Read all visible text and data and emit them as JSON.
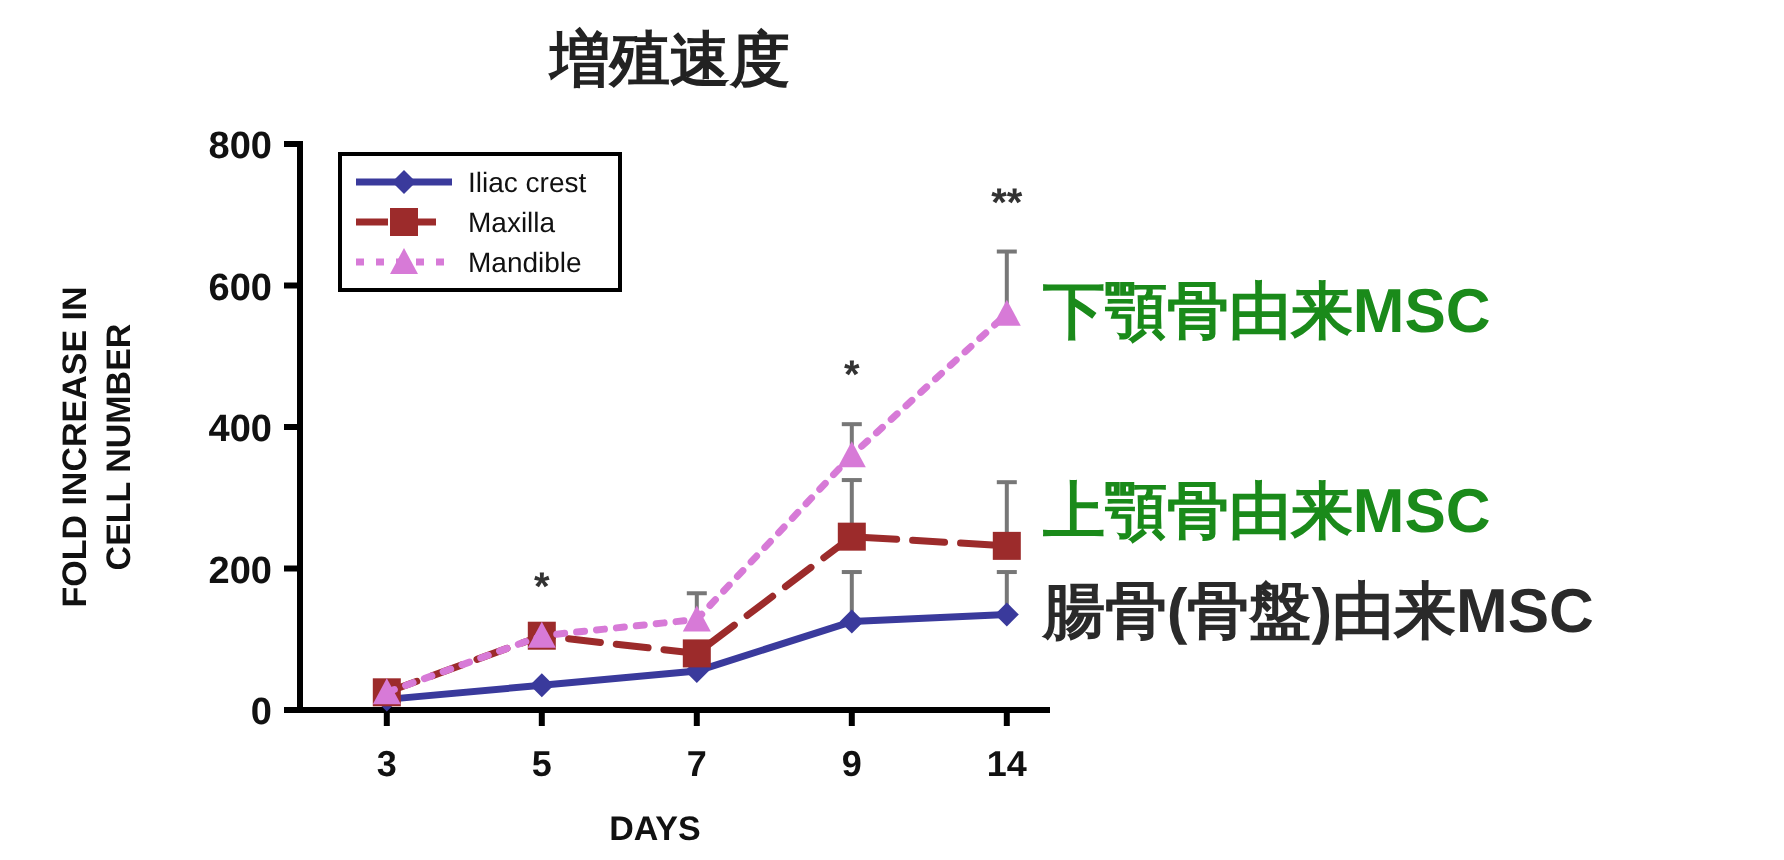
{
  "chart_data": {
    "type": "line",
    "title": "増殖速度",
    "xlabel": "DAYS",
    "ylabel": "FOLD INCREASE IN\nCELL NUMBER",
    "categories": [
      "3",
      "5",
      "7",
      "9",
      "14"
    ],
    "series": [
      {
        "name": "Iliac crest",
        "color": "#3a3a9c",
        "marker": "diamond",
        "line_style": "solid",
        "values": [
          15,
          35,
          55,
          125,
          135
        ],
        "errors": [
          null,
          null,
          null,
          [
            125,
            195
          ],
          [
            135,
            195
          ]
        ]
      },
      {
        "name": "Maxilla",
        "color": "#9c2b2b",
        "marker": "square",
        "line_style": "dashed",
        "values": [
          25,
          105,
          80,
          245,
          232
        ],
        "errors": [
          null,
          null,
          null,
          [
            245,
            325
          ],
          [
            232,
            322
          ]
        ]
      },
      {
        "name": "Mandible",
        "color": "#d77ad7",
        "marker": "triangle",
        "line_style": "dotted",
        "values": [
          25,
          105,
          128,
          360,
          560
        ],
        "errors": [
          null,
          null,
          [
            128,
            165
          ],
          [
            360,
            404
          ],
          [
            560,
            648
          ]
        ]
      }
    ],
    "ylim": [
      0,
      800
    ],
    "yticks": [
      0,
      200,
      400,
      600,
      800
    ],
    "legend": "top left",
    "annotations": [
      {
        "text": "*",
        "x": "5",
        "y": 105
      },
      {
        "text": "*",
        "x": "9",
        "y": 404
      },
      {
        "text": "**",
        "x": "14",
        "y": 648
      },
      {
        "text": "下顎骨由来MSC",
        "x": "14",
        "y": 565
      },
      {
        "text": "上顎骨由来MSC",
        "x": "14",
        "y": 282
      },
      {
        "text": "腸骨(骨盤)由来MSC",
        "x": "14",
        "y": 141
      }
    ]
  }
}
